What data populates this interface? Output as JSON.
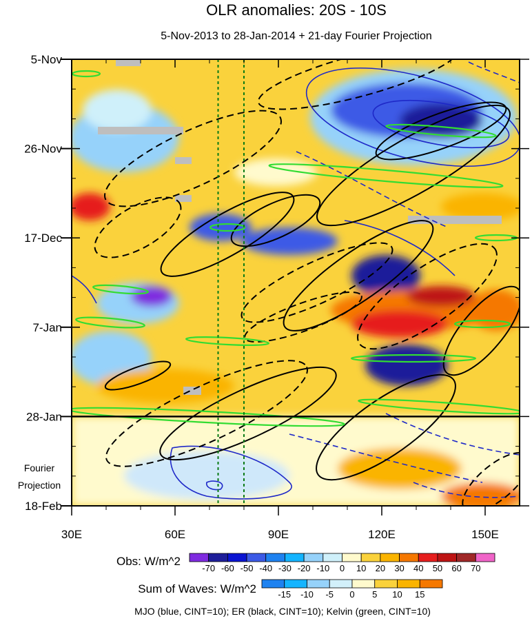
{
  "chart_data": {
    "type": "heatmap",
    "title": "OLR anomalies: 20S - 10S",
    "subtitle": "5-Nov-2013 to 28-Jan-2014 + 21-day Fourier Projection",
    "x_axis": {
      "range": [
        30,
        160
      ],
      "ticks": [
        30,
        60,
        90,
        120,
        150
      ],
      "tick_labels": [
        "30E",
        "60E",
        "90E",
        "120E",
        "150E"
      ]
    },
    "y_axis": {
      "range_days": [
        0,
        105
      ],
      "ticks": [
        0,
        21,
        42,
        63,
        84,
        105
      ],
      "tick_labels": [
        "5-Nov",
        "26-Nov",
        "17-Dec",
        "7-Jan",
        "28-Jan",
        "18-Feb"
      ],
      "direction": "time increases downward"
    },
    "reference_lines": {
      "observation_end_day": 84,
      "dashed_longitudes": [
        72.5,
        80
      ]
    },
    "forecast_label": [
      "Fourier",
      "Projection"
    ],
    "obs_colorbar": {
      "label": "Obs: W/m^2",
      "levels": [
        -70,
        -60,
        -50,
        -40,
        -30,
        -20,
        -10,
        0,
        10,
        20,
        30,
        40,
        50,
        60,
        70
      ],
      "level_labels": [
        "-70",
        "-60",
        "-50",
        "-40",
        "-30",
        "-20",
        "-10",
        "0",
        "10",
        "20",
        "30",
        "40",
        "50",
        "60",
        "70"
      ],
      "colors": [
        "#7f2be0",
        "#1e1e9a",
        "#0a14d2",
        "#3c5ae6",
        "#1e82f0",
        "#14b4ff",
        "#96d2fa",
        "#cff0fa",
        "#fffacd",
        "#fad23c",
        "#fab400",
        "#f57800",
        "#e61e1e",
        "#be1414",
        "#a02828",
        "#f064c8"
      ]
    },
    "waves_colorbar": {
      "label": "Sum of Waves: W/m^2",
      "levels": [
        -15,
        -10,
        -5,
        0,
        5,
        10,
        15
      ],
      "level_labels": [
        "-15",
        "-10",
        "-5",
        "0",
        "5",
        "10",
        "15"
      ],
      "colors": [
        "#1e82f0",
        "#14b4ff",
        "#96d2fa",
        "#d2f0fa",
        "#fffacd",
        "#fad23c",
        "#fab400",
        "#f57800"
      ]
    },
    "footer": "MJO (blue, CINT=10); ER (black, CINT=10); Kelvin (green, CINT=10)",
    "contour_series": [
      {
        "name": "MJO",
        "color": "#1e28c8",
        "cint": 10
      },
      {
        "name": "ER",
        "color": "#000000",
        "cint": 10
      },
      {
        "name": "Kelvin",
        "color": "#32dc32",
        "cint": 10
      }
    ]
  }
}
